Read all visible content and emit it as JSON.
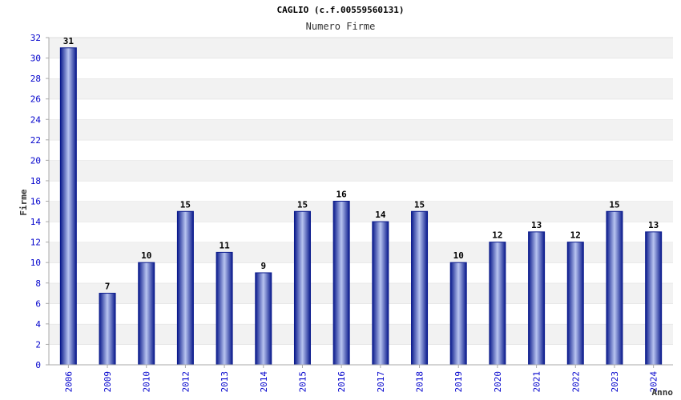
{
  "chart_data": {
    "type": "bar",
    "title": "CAGLIO (c.f.00559560131)",
    "subtitle": "Numero Firme",
    "xlabel": "Anno",
    "ylabel": "Firme",
    "ylim": [
      0,
      32
    ],
    "ytick_step": 2,
    "grid": true,
    "categories": [
      "2006",
      "2009",
      "2010",
      "2012",
      "2013",
      "2014",
      "2015",
      "2016",
      "2017",
      "2018",
      "2019",
      "2020",
      "2021",
      "2022",
      "2023",
      "2024"
    ],
    "values": [
      31,
      7,
      10,
      15,
      11,
      9,
      15,
      16,
      14,
      15,
      10,
      12,
      13,
      12,
      15,
      13
    ],
    "colors": {
      "bar_dark": "#0a1a8c",
      "bar_light": "#b8c4f0",
      "band": "#f2f2f2",
      "axis": "#aaaaaa",
      "tick_text": "#0000cc"
    }
  }
}
